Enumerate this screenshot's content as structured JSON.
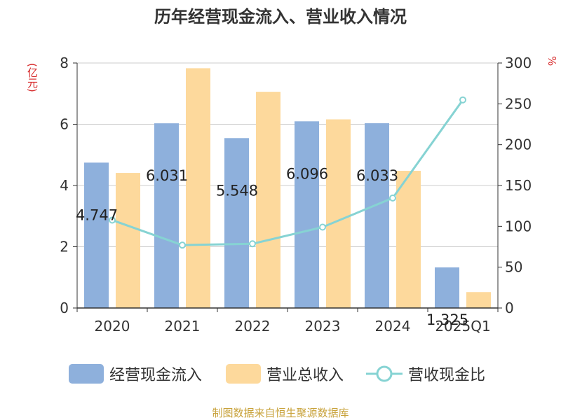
{
  "page": {
    "title": "历年经营现金流入、营业收入情况",
    "source": "制图数据来自恒生聚源数据库",
    "left_unit": "(亿元)",
    "right_unit": "%"
  },
  "colors": {
    "cash": "#8eb0dc",
    "revenue": "#fdd99c",
    "ratio": "#86d3d3",
    "title": "#333333",
    "unit": "#d62728",
    "source": "#c8a23a"
  },
  "chart_data": {
    "type": "bar",
    "title": "历年经营现金流入、营业收入情况",
    "categories": [
      "2020",
      "2021",
      "2022",
      "2023",
      "2024",
      "2025Q1"
    ],
    "ylim": [
      0,
      8
    ],
    "y2lim": [
      0,
      300
    ],
    "yticks": [
      "0",
      "2",
      "4",
      "6",
      "8"
    ],
    "y2ticks": [
      "0",
      "50",
      "100",
      "150",
      "200",
      "250",
      "300"
    ],
    "series": [
      {
        "name": "经营现金流入",
        "kind": "bar",
        "axis": "left",
        "values": [
          4.747,
          6.031,
          5.548,
          6.096,
          6.033,
          1.325
        ],
        "labels": [
          "4.747",
          "6.031",
          "5.548",
          "6.096",
          "6.033",
          "1.325"
        ]
      },
      {
        "name": "营业总收入",
        "kind": "bar",
        "axis": "left",
        "values": [
          4.41,
          7.83,
          7.06,
          6.16,
          4.48,
          0.52
        ]
      },
      {
        "name": "营收现金比",
        "kind": "line",
        "axis": "right",
        "values": [
          107.6,
          77.0,
          78.6,
          99.0,
          134.7,
          254.8
        ]
      }
    ],
    "legend": "bottom",
    "grid": true
  }
}
